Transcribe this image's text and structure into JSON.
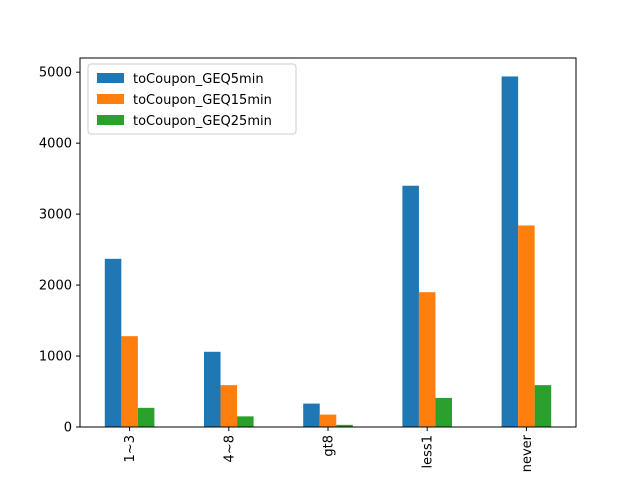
{
  "chart_data": {
    "type": "bar",
    "categories": [
      "1~3",
      "4~8",
      "gt8",
      "less1",
      "never"
    ],
    "series": [
      {
        "name": "toCoupon_GEQ5min",
        "color": "#1f77b4",
        "values": [
          2370,
          1060,
          330,
          3400,
          4940
        ]
      },
      {
        "name": "toCoupon_GEQ15min",
        "color": "#ff7f0e",
        "values": [
          1280,
          590,
          175,
          1900,
          2840
        ]
      },
      {
        "name": "toCoupon_GEQ25min",
        "color": "#2ca02c",
        "values": [
          270,
          150,
          30,
          410,
          590
        ]
      }
    ],
    "ylim": [
      0,
      5200
    ],
    "yticks": [
      0,
      1000,
      2000,
      3000,
      4000,
      5000
    ],
    "legend_position": "top-left",
    "grid": false
  }
}
